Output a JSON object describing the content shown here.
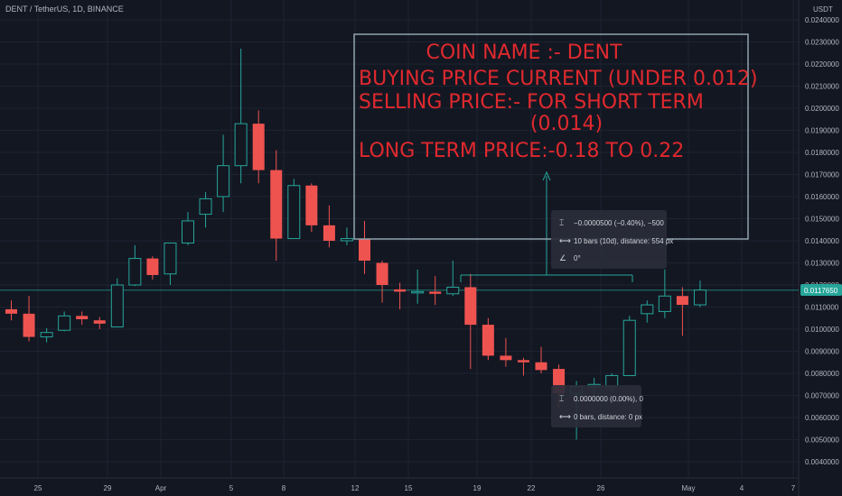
{
  "header": {
    "symbol_line": "DENT / TetherUS, 1D, BINANCE"
  },
  "price_axis": {
    "currency": "USDT",
    "ticks": [
      "0.0240000",
      "0.0230000",
      "0.0220000",
      "0.0210000",
      "0.0200000",
      "0.0190000",
      "0.0180000",
      "0.0170000",
      "0.0160000",
      "0.0150000",
      "0.0140000",
      "0.0130000",
      "0.0120000",
      "0.0110000",
      "0.0100000",
      "0.0090000",
      "0.0080000",
      "0.0070000",
      "0.0060000",
      "0.0050000",
      "0.0040000"
    ],
    "current_price_label": "0.0117650"
  },
  "time_axis": {
    "ticks": [
      "25",
      "29",
      "Apr",
      "5",
      "8",
      "12",
      "15",
      "19",
      "22",
      "26",
      "May",
      "4",
      "7"
    ]
  },
  "annotation_box": {
    "lines": [
      "COIN NAME :- DENT",
      "BUYING PRICE CURRENT (UNDER 0.012)",
      "SELLING PRICE:- FOR SHORT TERM",
      "(0.014)",
      "LONG TERM  PRICE:-0.18 TO 0.22"
    ],
    "text_color": "#e0292e",
    "border_color": "#8fa3ad"
  },
  "measure_tooltip_1": {
    "price_change": "−0.0000500 (−0.40%), −500",
    "bars": "10 bars (10d), distance: 554 px",
    "angle": "0°"
  },
  "measure_tooltip_2": {
    "price_change": "0.0000000 (0.00%), 0",
    "bars": "0 bars, distance: 0 px"
  },
  "colors": {
    "background": "#131722",
    "up": "#26a69a",
    "down": "#ef5350",
    "grid": "#1e2331",
    "price_line": "#26a69a"
  },
  "chart_data": {
    "type": "candlestick",
    "title": "DENT / TetherUS, 1D, BINANCE",
    "y_unit": "USDT",
    "ylim": [
      0.0038,
      0.0245
    ],
    "current_price": 0.011765,
    "x_tick_labels": [
      "25",
      "29",
      "Apr",
      "5",
      "8",
      "12",
      "15",
      "19",
      "22",
      "26",
      "May",
      "4",
      "7"
    ],
    "candles": [
      {
        "o": 0.0109,
        "h": 0.0113,
        "l": 0.0104,
        "c": 0.0107
      },
      {
        "o": 0.0107,
        "h": 0.0115,
        "l": 0.00945,
        "c": 0.00965
      },
      {
        "o": 0.00965,
        "h": 0.01005,
        "l": 0.0094,
        "c": 0.00985
      },
      {
        "o": 0.00995,
        "h": 0.0108,
        "l": 0.0099,
        "c": 0.0106
      },
      {
        "o": 0.0106,
        "h": 0.0108,
        "l": 0.0102,
        "c": 0.01045
      },
      {
        "o": 0.0104,
        "h": 0.01055,
        "l": 0.01,
        "c": 0.01025
      },
      {
        "o": 0.0101,
        "h": 0.0123,
        "l": 0.0101,
        "c": 0.012
      },
      {
        "o": 0.012,
        "h": 0.0138,
        "l": 0.01195,
        "c": 0.0132
      },
      {
        "o": 0.0132,
        "h": 0.0133,
        "l": 0.01225,
        "c": 0.01245
      },
      {
        "o": 0.0125,
        "h": 0.0139,
        "l": 0.012,
        "c": 0.0139
      },
      {
        "o": 0.0139,
        "h": 0.0153,
        "l": 0.0138,
        "c": 0.0149
      },
      {
        "o": 0.0152,
        "h": 0.0162,
        "l": 0.0146,
        "c": 0.0159
      },
      {
        "o": 0.016,
        "h": 0.0188,
        "l": 0.0153,
        "c": 0.0174
      },
      {
        "o": 0.0174,
        "h": 0.0227,
        "l": 0.0166,
        "c": 0.0193
      },
      {
        "o": 0.0193,
        "h": 0.0199,
        "l": 0.0166,
        "c": 0.0172
      },
      {
        "o": 0.0172,
        "h": 0.0181,
        "l": 0.0131,
        "c": 0.0141
      },
      {
        "o": 0.0141,
        "h": 0.0168,
        "l": 0.0141,
        "c": 0.0165
      },
      {
        "o": 0.0165,
        "h": 0.0166,
        "l": 0.0144,
        "c": 0.0147
      },
      {
        "o": 0.0147,
        "h": 0.0156,
        "l": 0.0137,
        "c": 0.014
      },
      {
        "o": 0.014,
        "h": 0.0146,
        "l": 0.0138,
        "c": 0.0141
      },
      {
        "o": 0.0141,
        "h": 0.0149,
        "l": 0.0125,
        "c": 0.0131
      },
      {
        "o": 0.013,
        "h": 0.0131,
        "l": 0.0112,
        "c": 0.012
      },
      {
        "o": 0.0118,
        "h": 0.0121,
        "l": 0.0109,
        "c": 0.0117
      },
      {
        "o": 0.0117,
        "h": 0.0127,
        "l": 0.01115,
        "c": 0.0117
      },
      {
        "o": 0.0117,
        "h": 0.0124,
        "l": 0.0111,
        "c": 0.0116
      },
      {
        "o": 0.0116,
        "h": 0.0131,
        "l": 0.0115,
        "c": 0.0119
      },
      {
        "o": 0.0119,
        "h": 0.0125,
        "l": 0.0082,
        "c": 0.0102
      },
      {
        "o": 0.0102,
        "h": 0.0105,
        "l": 0.0086,
        "c": 0.0088
      },
      {
        "o": 0.0088,
        "h": 0.0096,
        "l": 0.0083,
        "c": 0.0086
      },
      {
        "o": 0.0086,
        "h": 0.0087,
        "l": 0.0079,
        "c": 0.0085
      },
      {
        "o": 0.0085,
        "h": 0.0092,
        "l": 0.008,
        "c": 0.00815
      },
      {
        "o": 0.0082,
        "h": 0.0084,
        "l": 0.0064,
        "c": 0.0071
      },
      {
        "o": 0.0071,
        "h": 0.00765,
        "l": 0.005,
        "c": 0.0074
      },
      {
        "o": 0.0074,
        "h": 0.0078,
        "l": 0.007,
        "c": 0.0075
      },
      {
        "o": 0.0074,
        "h": 0.008,
        "l": 0.0072,
        "c": 0.0079
      },
      {
        "o": 0.0079,
        "h": 0.0106,
        "l": 0.0079,
        "c": 0.0104
      },
      {
        "o": 0.0107,
        "h": 0.0113,
        "l": 0.0103,
        "c": 0.0111
      },
      {
        "o": 0.0108,
        "h": 0.0127,
        "l": 0.0105,
        "c": 0.0115
      },
      {
        "o": 0.0115,
        "h": 0.0119,
        "l": 0.0097,
        "c": 0.0111
      },
      {
        "o": 0.0111,
        "h": 0.0122,
        "l": 0.011,
        "c": 0.01177
      }
    ]
  }
}
